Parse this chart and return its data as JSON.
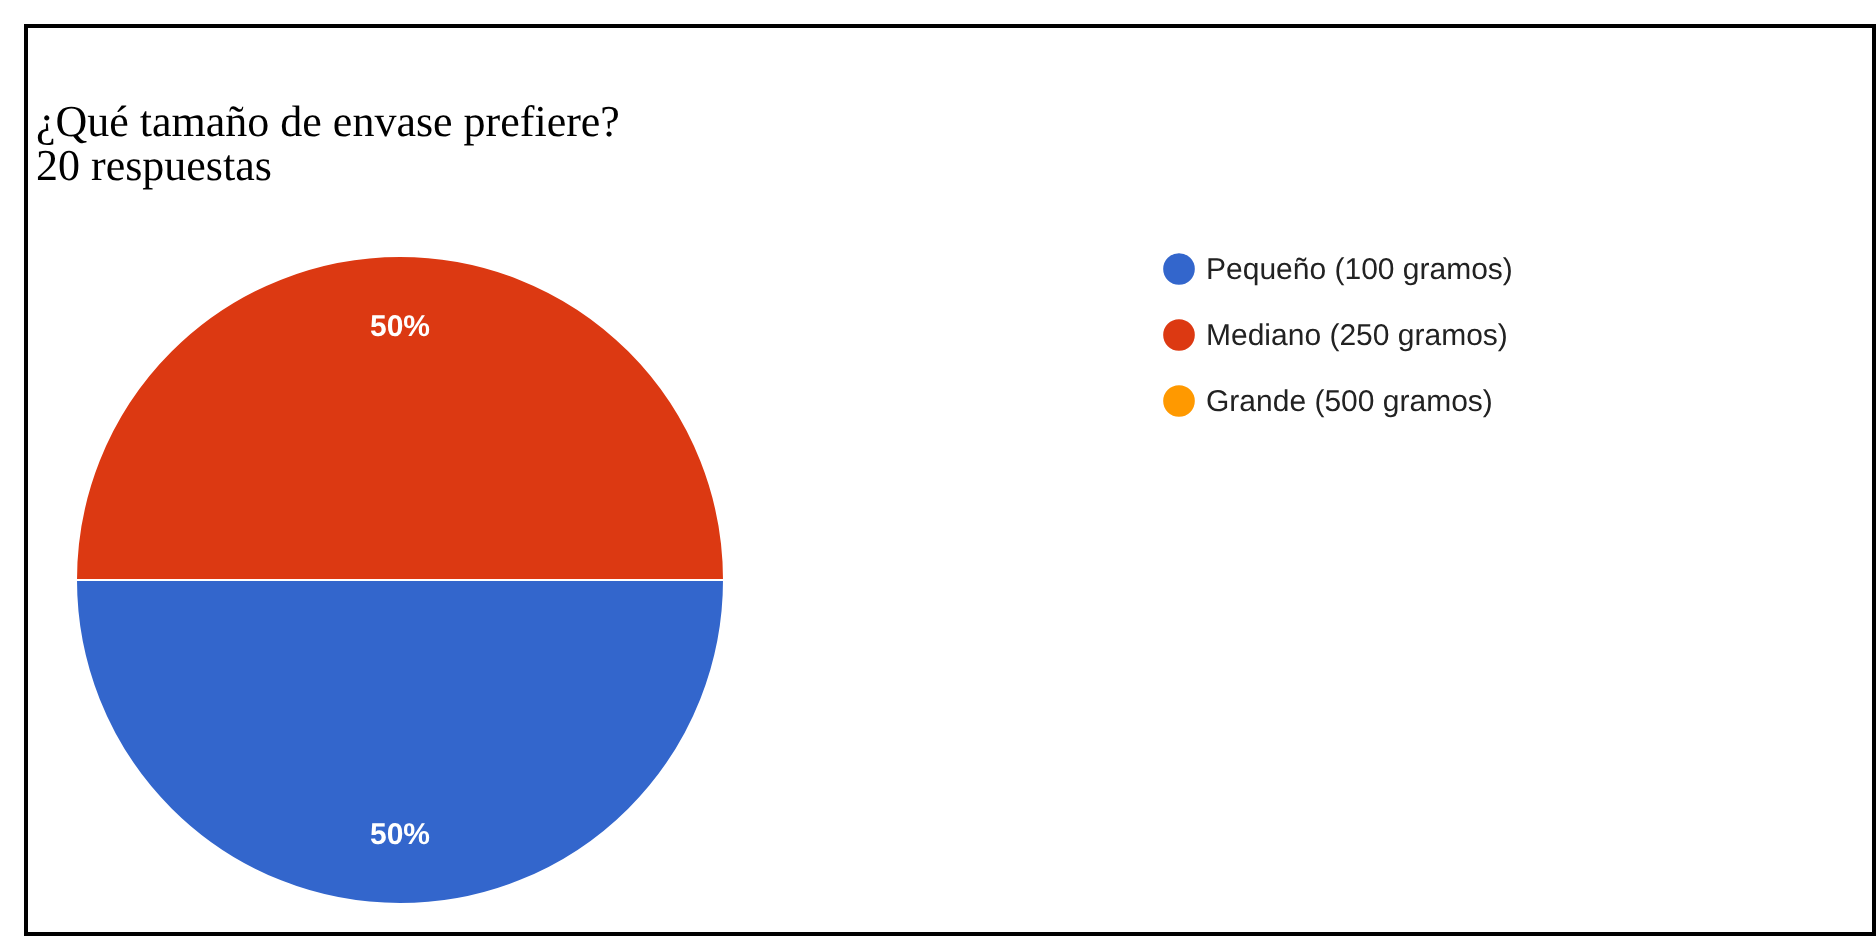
{
  "chart_data": {
    "type": "pie",
    "title": "¿Qué tamaño de envase prefiere?",
    "subtitle": "20 respuestas",
    "categories": [
      "Pequeño (100 gramos)",
      "Mediano (250 gramos)",
      "Grande (500 gramos)"
    ],
    "values": [
      50,
      50,
      0
    ],
    "colors": [
      "#3366cc",
      "#dc3912",
      "#ff9900"
    ],
    "value_labels": [
      "50%",
      "50%",
      null
    ],
    "legend": "right"
  }
}
